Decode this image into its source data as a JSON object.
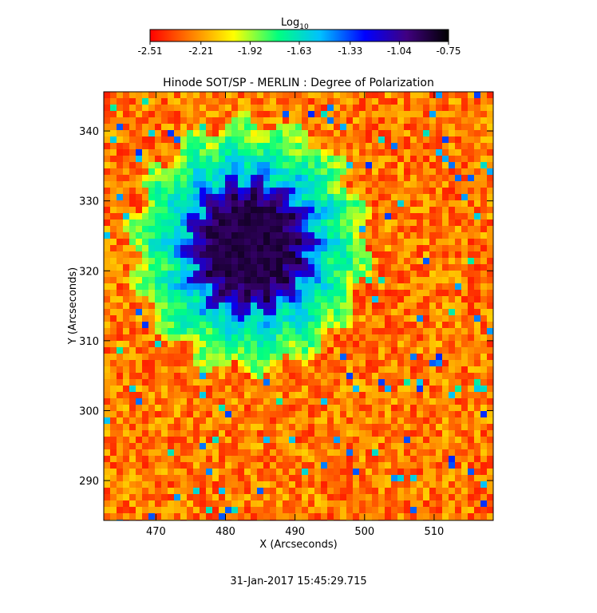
{
  "chart_data": {
    "type": "heatmap",
    "title": "Hinode SOT/SP - MERLIN : Degree of Polarization",
    "xlabel": "X (Arcseconds)",
    "ylabel": "Y (Arcseconds)",
    "xlim": [
      462.5,
      518.5
    ],
    "ylim": [
      284.3,
      345.6
    ],
    "x_ticks": [
      470,
      480,
      490,
      500,
      510
    ],
    "y_ticks": [
      290,
      300,
      310,
      320,
      330,
      340
    ],
    "x_tick_labels": [
      "470",
      "480",
      "490",
      "500",
      "510"
    ],
    "y_tick_labels": [
      "290",
      "300",
      "310",
      "320",
      "330",
      "340"
    ],
    "colorbar": {
      "label": "Log",
      "label_subscript": "10",
      "range": [
        -2.51,
        -0.75
      ],
      "tick_values": [
        -2.51,
        -2.21,
        -1.92,
        -1.63,
        -1.33,
        -1.04,
        -0.75
      ],
      "tick_labels": [
        "-2.51",
        "-2.21",
        "-1.92",
        "-1.63",
        "-1.33",
        "-1.04",
        "-0.75"
      ],
      "colormap": [
        "#ff0000",
        "#ff8000",
        "#ffff00",
        "#00ff80",
        "#00c0ff",
        "#0000ff",
        "#400080",
        "#000000"
      ]
    },
    "features": {
      "sunspot_umbra_center": [
        483.5,
        323.5
      ],
      "sunspot_umbra_value": -0.9,
      "penumbra_value": -1.6,
      "quiet_sun_value": -2.4
    },
    "timestamp": "31-Jan-2017 15:45:29.715"
  }
}
